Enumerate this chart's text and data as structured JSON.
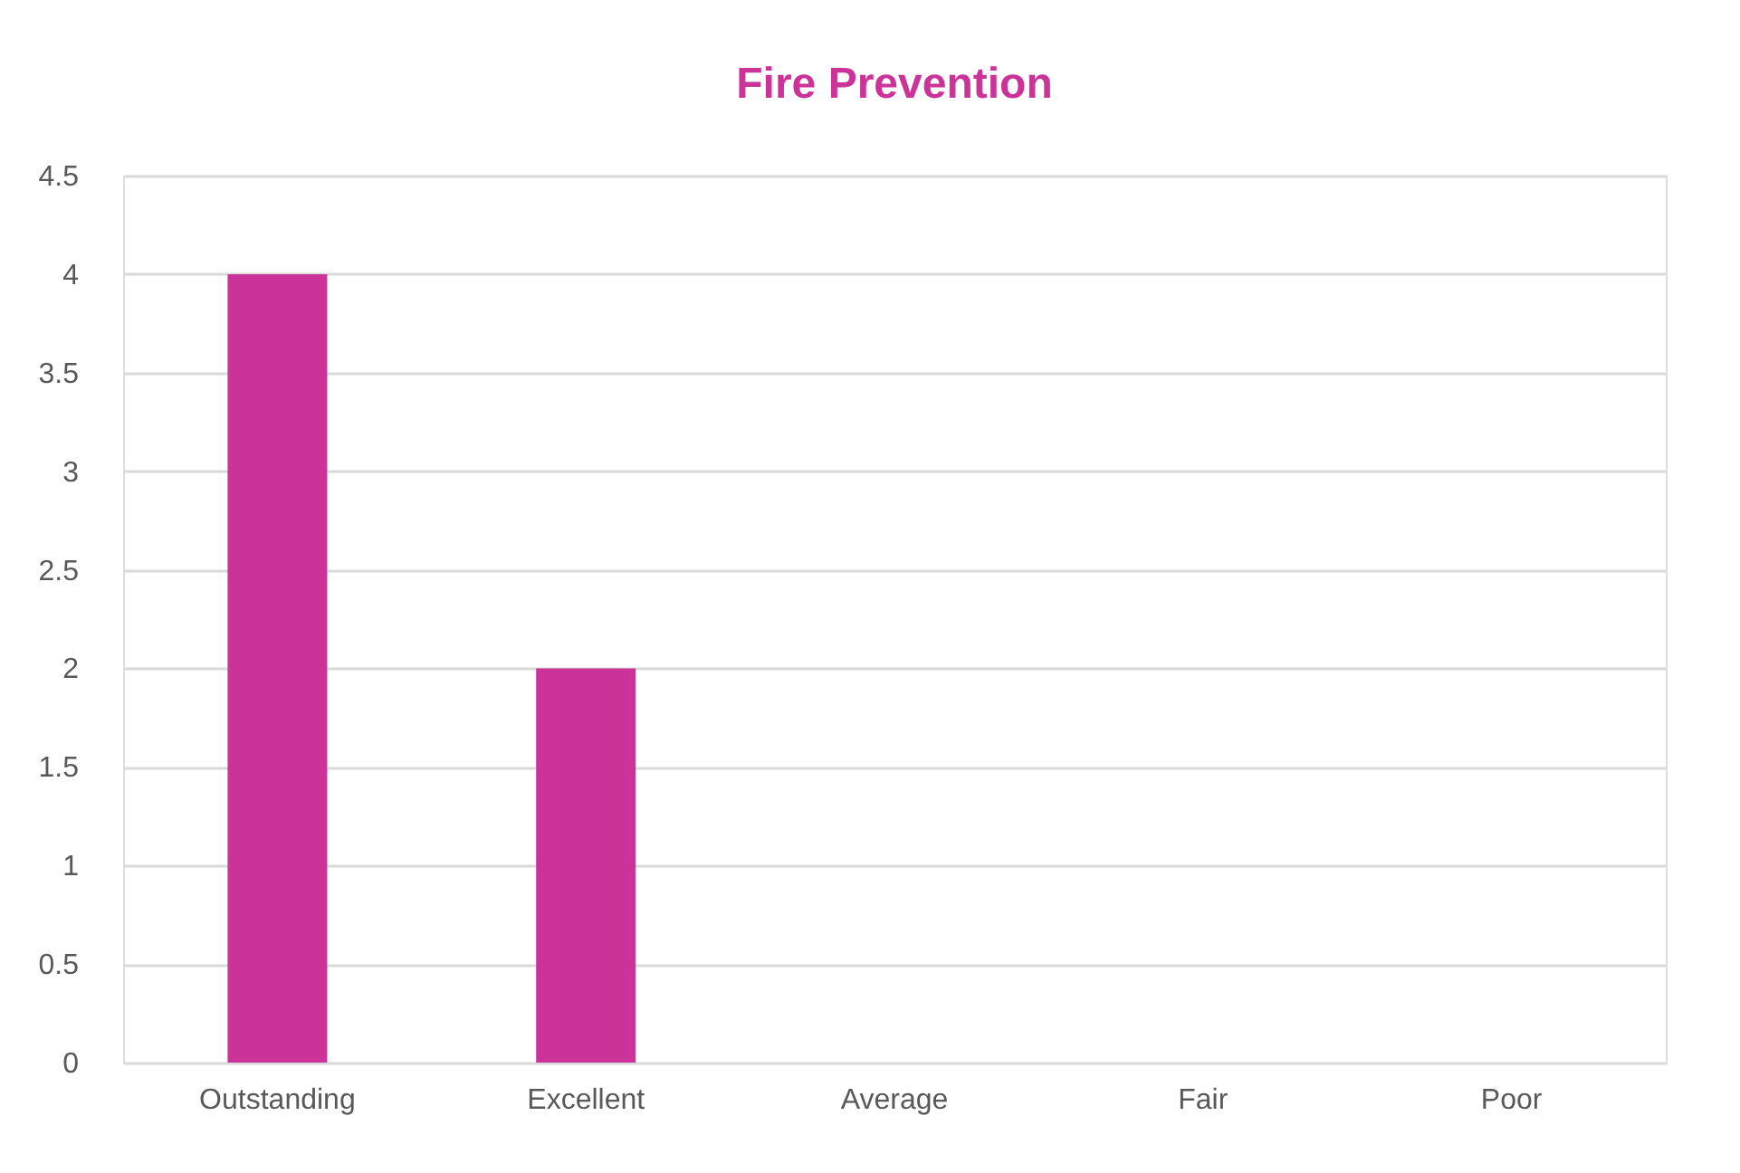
{
  "chart_data": {
    "type": "bar",
    "title": "Fire Prevention",
    "categories": [
      "Outstanding",
      "Excellent",
      "Average",
      "Fair",
      "Poor"
    ],
    "values": [
      4,
      2,
      0,
      0,
      0
    ],
    "color": "#cc3399",
    "ylim": [
      0,
      4.5
    ],
    "yticks": [
      0,
      0.5,
      1,
      1.5,
      2,
      2.5,
      3,
      3.5,
      4,
      4.5
    ],
    "grid": "y"
  }
}
